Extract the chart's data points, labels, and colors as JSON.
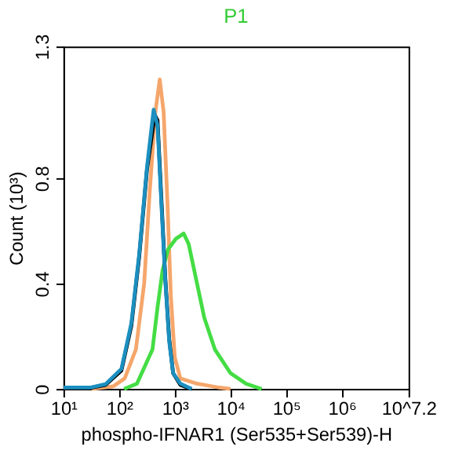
{
  "chart_data": {
    "type": "line",
    "title": "P1",
    "xlabel": "phospho-IFNAR1 (Ser535+Ser539)-H",
    "ylabel": "Count (10³)",
    "log": "x",
    "xlim": [
      10,
      15848932
    ],
    "ylim": [
      0,
      1.3
    ],
    "xticks": [
      {
        "value": 10,
        "label": "10¹"
      },
      {
        "value": 100,
        "label": "10²"
      },
      {
        "value": 1000,
        "label": "10³"
      },
      {
        "value": 10000,
        "label": "10⁴"
      },
      {
        "value": 100000,
        "label": "10⁵"
      },
      {
        "value": 1000000,
        "label": "10⁶"
      },
      {
        "value": 15848932,
        "label": "10^7.2"
      }
    ],
    "yticks": [
      0,
      0.4,
      0.8,
      1.3
    ],
    "grid": false,
    "legend": false,
    "marker": "none",
    "line_style": "solid",
    "series": [
      {
        "color": "#f5a66b",
        "x": [
          32,
          79,
          126,
          200,
          282,
          355,
          447,
          537,
          631,
          741,
          851,
          1000,
          1259,
          2512,
          6310,
          10000
        ],
        "values": [
          0,
          0.01,
          0.04,
          0.15,
          0.4,
          0.75,
          1.05,
          1.175,
          1.05,
          0.7,
          0.35,
          0.12,
          0.04,
          0.02,
          0.005,
          0
        ]
      },
      {
        "color": "#44dd44",
        "x": [
          123,
          209,
          398,
          490,
          603,
          759,
          1047,
          1445,
          1778,
          2455,
          3388,
          5248,
          10000,
          19055,
          36308
        ],
        "values": [
          0,
          0.02,
          0.15,
          0.31,
          0.45,
          0.53,
          0.57,
          0.59,
          0.55,
          0.41,
          0.27,
          0.15,
          0.06,
          0.02,
          0
        ]
      },
      {
        "color": "#000000",
        "x": [
          10,
          30,
          57,
          110,
          166,
          229,
          316,
          437,
          490,
          575,
          676,
          794,
          933,
          1259,
          2000
        ],
        "values": [
          0.003,
          0.004,
          0.015,
          0.07,
          0.24,
          0.5,
          0.83,
          1.04,
          1.02,
          0.72,
          0.42,
          0.19,
          0.06,
          0.015,
          0
        ]
      },
      {
        "color": "#1b8fbf",
        "x": [
          10,
          30,
          57,
          110,
          166,
          229,
          316,
          417,
          490,
          575,
          676,
          794,
          933,
          1259,
          2000
        ],
        "values": [
          0.005,
          0.005,
          0.018,
          0.076,
          0.25,
          0.51,
          0.84,
          1.06,
          1.0,
          0.7,
          0.41,
          0.18,
          0.06,
          0.02,
          0
        ]
      }
    ]
  }
}
